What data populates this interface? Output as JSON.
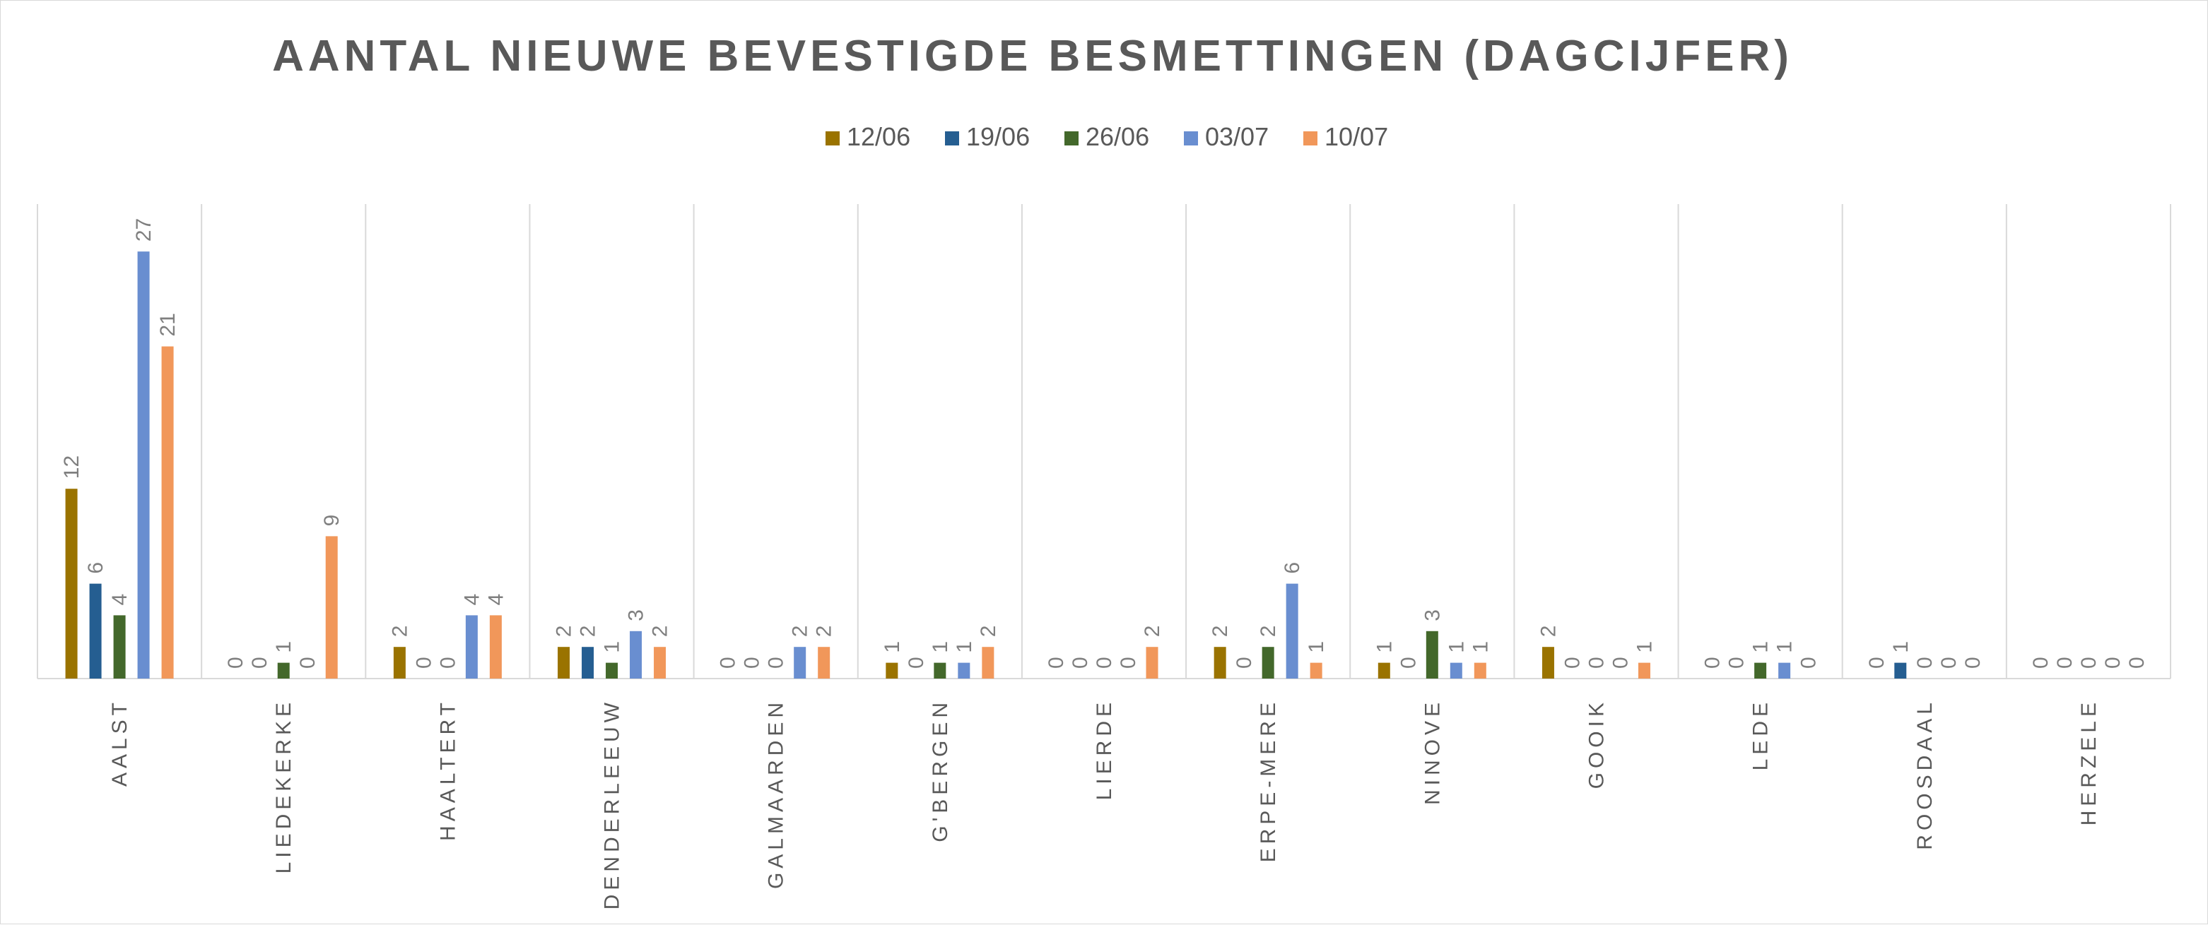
{
  "chart_data": {
    "type": "bar",
    "title": "AANTAL NIEUWE BEVESTIGDE BESMETTINGEN (DAGCIJFER)",
    "xlabel": "",
    "ylabel": "",
    "ylim": [
      0,
      30
    ],
    "grid": false,
    "legend_position": "top-center",
    "categories": [
      "AALST",
      "LIEDEKERKE",
      "HAALTERT",
      "DENDERLEEUW",
      "GALMAARDEN",
      "G'BERGEN",
      "LIERDE",
      "ERPE-MERE",
      "NINOVE",
      "GOOIK",
      "LEDE",
      "ROOSDAAL",
      "HERZELE"
    ],
    "series": [
      {
        "name": "12/06",
        "color": "#9A7300",
        "values": [
          12,
          0,
          2,
          2,
          0,
          1,
          0,
          2,
          1,
          2,
          0,
          0,
          0
        ]
      },
      {
        "name": "19/06",
        "color": "#255E91",
        "values": [
          6,
          0,
          0,
          2,
          0,
          0,
          0,
          0,
          0,
          0,
          0,
          1,
          0
        ]
      },
      {
        "name": "26/06",
        "color": "#43682B",
        "values": [
          4,
          1,
          0,
          1,
          0,
          1,
          0,
          2,
          3,
          0,
          1,
          0,
          0
        ]
      },
      {
        "name": "03/07",
        "color": "#698ED0",
        "values": [
          27,
          0,
          4,
          3,
          2,
          1,
          0,
          6,
          1,
          0,
          1,
          0,
          0
        ]
      },
      {
        "name": "10/07",
        "color": "#F1975A",
        "values": [
          21,
          9,
          4,
          2,
          2,
          2,
          2,
          1,
          1,
          1,
          0,
          0,
          0
        ]
      }
    ]
  }
}
